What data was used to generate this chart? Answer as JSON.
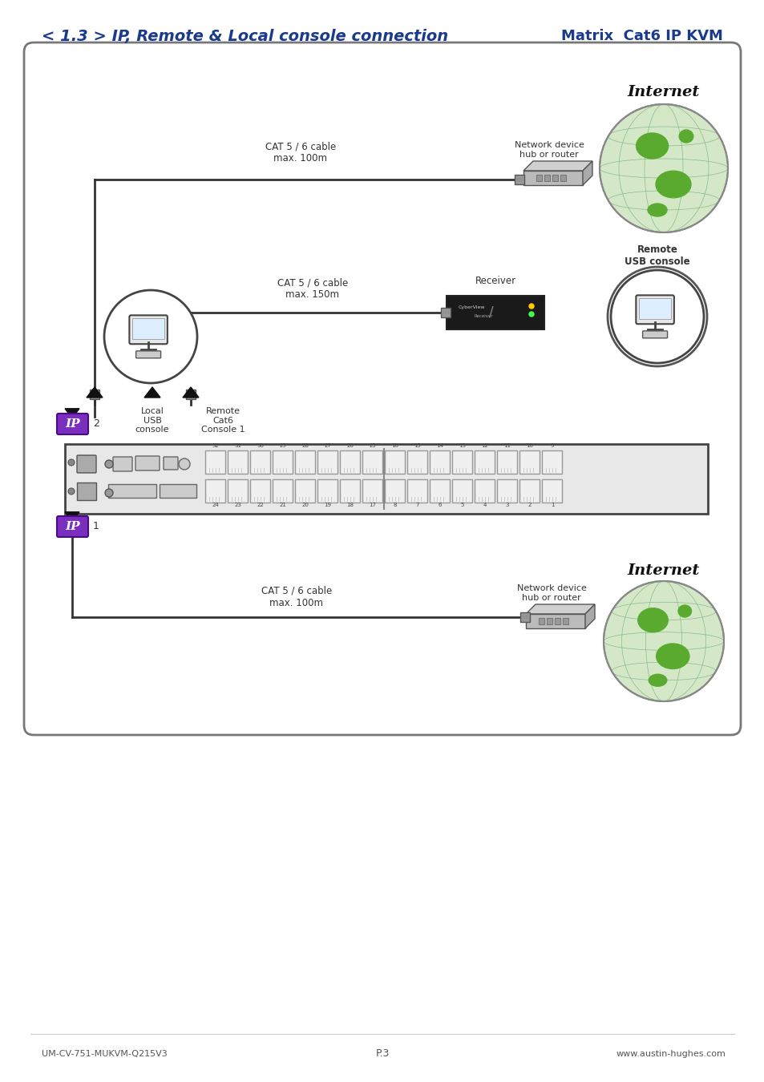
{
  "title_left": "< 1.3 > IP, Remote & Local console connection",
  "title_right": "Matrix  Cat6 IP KVM",
  "title_color": "#1a3a8c",
  "footer_left": "UM-CV-751-MUKVM-Q215V3",
  "footer_center": "P.3",
  "footer_right": "www.austin-hughes.com",
  "bg_color": "#ffffff",
  "ip_box_color": "#7b2fbe",
  "ip_text_color": "#ffffff",
  "label_internet1": "Internet",
  "label_network1": "Network device\nhub or router",
  "label_cable1": "CAT 5 / 6 cable\nmax. 100m",
  "label_receiver": "Receiver",
  "label_cable2": "CAT 5 / 6 cable\nmax. 150m",
  "label_remote_usb": "Remote\nUSB console",
  "label_local_usb": "Local\nUSB\nconsole",
  "label_remote_cat6": "Remote\nCat6\nConsole 1",
  "label_ip2": "IP",
  "label_2": "2",
  "label_ip1": "IP",
  "label_1": "1",
  "label_internet2": "Internet",
  "label_network2": "Network device\nhub or router",
  "label_cable3": "CAT 5 / 6 cable\nmax. 100m",
  "globe_bg": "#e8f0d0",
  "globe_ocean": "#d4e8c8",
  "globe_land": "#5aaa30",
  "globe_grid": "#88bb88",
  "router_body": "#d8d8d8",
  "router_shadow": "#bbbbbb",
  "kvm_bg": "#e8e8e8",
  "kvm_border": "#444444",
  "port_bg": "#f0f0f0",
  "port_border": "#999999"
}
